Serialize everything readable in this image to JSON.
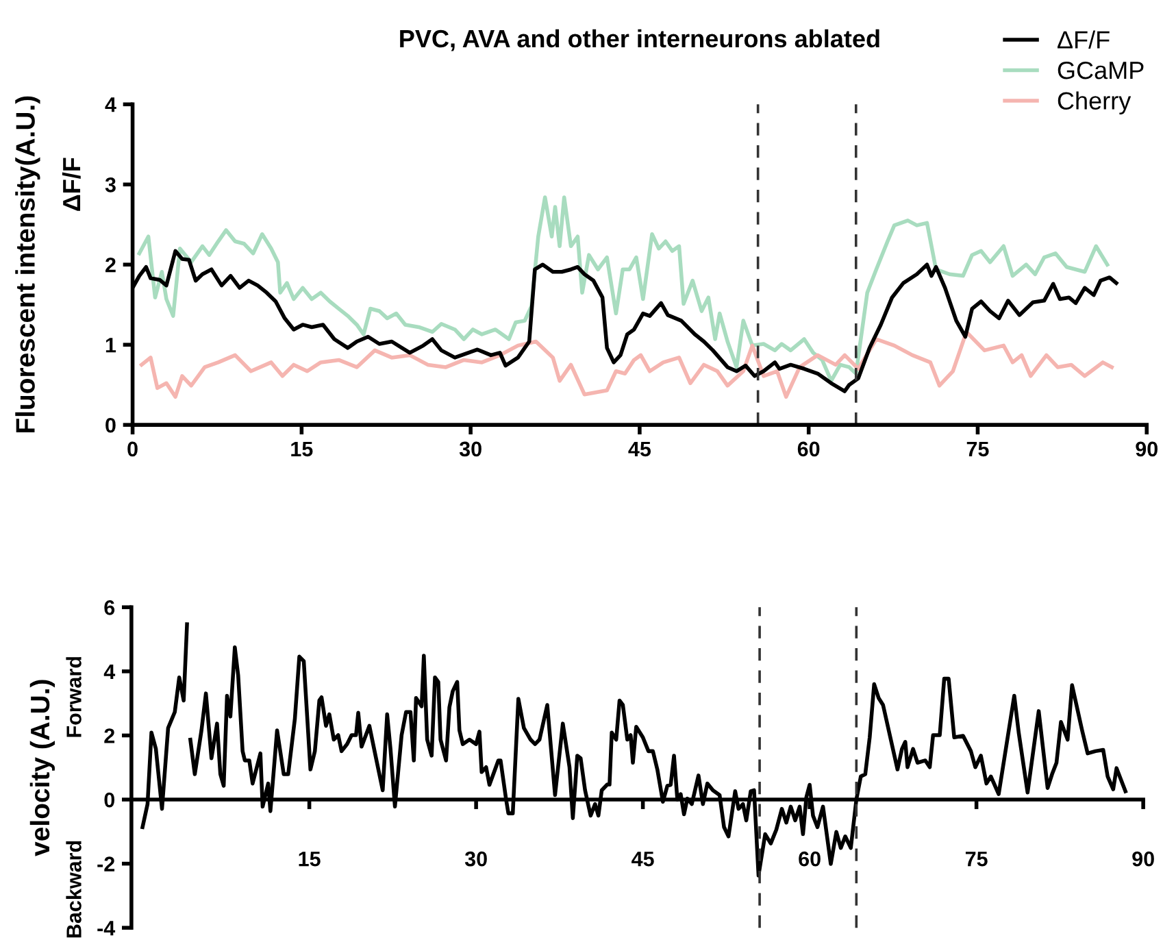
{
  "chart_data": [
    {
      "type": "line",
      "title": "PVC, AVA and other interneurons ablated",
      "ylabel": "Fluorescent intensity(A.U.)",
      "annotations": [
        "ΔF/F"
      ],
      "xlim": [
        0,
        90
      ],
      "xticks": [
        0,
        15,
        30,
        45,
        60,
        75,
        90
      ],
      "ylim": [
        0,
        4
      ],
      "yticks": [
        0,
        1,
        2,
        3,
        4
      ],
      "legend": "top right",
      "grid": false,
      "ref_lines": [
        {
          "axis": "x",
          "value": 55.5,
          "color": "#333333",
          "line_style": "dashed"
        },
        {
          "axis": "x",
          "value": 64.2,
          "color": "#333333",
          "line_style": "dashed"
        }
      ],
      "series": [
        {
          "name": "GCaMP",
          "color": "#a8dcbf",
          "x": [
            0.6,
            1.4,
            2.0,
            2.6,
            3.0,
            3.6,
            4.2,
            5.2,
            6.2,
            6.8,
            7.6,
            8.3,
            9.1,
            9.9,
            10.7,
            11.5,
            12.3,
            12.9,
            13.1,
            13.7,
            14.3,
            15.1,
            15.9,
            16.7,
            17.5,
            18.3,
            19.1,
            19.9,
            20.5,
            21.1,
            21.9,
            22.6,
            23.4,
            24.2,
            25.4,
            26.6,
            27.4,
            28.6,
            29.4,
            30.2,
            31.0,
            32.2,
            33.4,
            34.0,
            34.8,
            35.4,
            36.0,
            36.6,
            37.2,
            37.5,
            37.9,
            38.3,
            38.9,
            39.5,
            39.9,
            40.5,
            41.3,
            42.1,
            42.9,
            43.5,
            44.1,
            44.7,
            45.3,
            46.1,
            46.7,
            47.3,
            47.9,
            48.5,
            48.9,
            49.7,
            50.5,
            51.1,
            51.7,
            52.1,
            52.8,
            53.6,
            54.2,
            55.0,
            56.0,
            57.0,
            57.6,
            58.4,
            59.6,
            60.4,
            61.2,
            62.0,
            62.8,
            63.6,
            64.2,
            65.2,
            66.0,
            67.0,
            67.6,
            68.8,
            69.6,
            70.5,
            71.3,
            72.5,
            73.7,
            74.5,
            75.3,
            76.1,
            77.3,
            78.1,
            79.3,
            80.1,
            80.9,
            81.9,
            82.9,
            84.5,
            85.5,
            86.5
          ],
          "values": [
            2.14,
            2.35,
            1.59,
            1.91,
            1.57,
            1.36,
            2.2,
            2.03,
            2.23,
            2.12,
            2.29,
            2.43,
            2.29,
            2.26,
            2.14,
            2.38,
            2.2,
            2.03,
            1.65,
            1.77,
            1.57,
            1.71,
            1.57,
            1.65,
            1.54,
            1.45,
            1.36,
            1.25,
            1.13,
            1.45,
            1.42,
            1.33,
            1.39,
            1.25,
            1.22,
            1.16,
            1.26,
            1.19,
            1.07,
            1.19,
            1.13,
            1.19,
            1.07,
            1.28,
            1.3,
            1.48,
            2.35,
            2.84,
            2.35,
            2.72,
            2.23,
            2.84,
            2.23,
            2.35,
            1.65,
            2.12,
            1.94,
            2.09,
            1.39,
            1.94,
            1.94,
            2.09,
            1.57,
            2.38,
            2.2,
            2.29,
            2.17,
            2.23,
            1.51,
            1.8,
            1.42,
            1.59,
            1.07,
            1.39,
            1.04,
            0.72,
            1.3,
            0.99,
            1.01,
            0.93,
            1.01,
            0.93,
            1.07,
            0.9,
            0.81,
            0.55,
            0.75,
            0.72,
            0.64,
            1.65,
            1.94,
            2.29,
            2.49,
            2.55,
            2.49,
            2.52,
            1.94,
            1.88,
            1.86,
            2.12,
            2.17,
            2.03,
            2.23,
            1.86,
            2.0,
            1.88,
            2.09,
            2.14,
            1.97,
            1.91,
            2.23,
            2.0
          ]
        },
        {
          "name": "Cherry",
          "color": "#f5b5b0",
          "x": [
            0.8,
            1.6,
            2.2,
            3.0,
            3.8,
            4.4,
            5.2,
            6.4,
            7.6,
            9.1,
            10.5,
            12.3,
            13.3,
            14.3,
            15.5,
            16.7,
            18.3,
            19.9,
            21.5,
            23.0,
            24.6,
            26.2,
            27.8,
            29.4,
            31.0,
            32.6,
            34.2,
            35.8,
            37.3,
            37.9,
            38.9,
            40.1,
            42.1,
            42.9,
            43.7,
            44.5,
            45.1,
            45.9,
            47.1,
            48.5,
            49.5,
            50.7,
            51.9,
            52.8,
            54.2,
            55.0,
            56.0,
            57.2,
            58.0,
            59.2,
            60.8,
            62.4,
            63.2,
            64.4,
            66.0,
            67.6,
            69.2,
            70.8,
            71.6,
            72.8,
            74.0,
            75.6,
            77.3,
            78.1,
            78.9,
            79.7,
            81.1,
            82.1,
            83.3,
            84.5,
            86.1,
            86.9
          ],
          "values": [
            0.75,
            0.84,
            0.46,
            0.52,
            0.35,
            0.61,
            0.49,
            0.72,
            0.78,
            0.87,
            0.67,
            0.78,
            0.61,
            0.75,
            0.67,
            0.78,
            0.81,
            0.72,
            0.93,
            0.84,
            0.87,
            0.75,
            0.72,
            0.81,
            0.78,
            0.87,
            0.99,
            1.04,
            0.84,
            0.55,
            0.75,
            0.38,
            0.43,
            0.67,
            0.64,
            0.81,
            0.87,
            0.67,
            0.78,
            0.84,
            0.52,
            0.75,
            0.67,
            0.49,
            0.67,
            0.99,
            0.61,
            0.67,
            0.35,
            0.72,
            0.87,
            0.75,
            0.87,
            0.7,
            1.07,
            0.99,
            0.87,
            0.78,
            0.49,
            0.67,
            1.16,
            0.93,
            0.99,
            0.78,
            0.87,
            0.61,
            0.87,
            0.72,
            0.75,
            0.61,
            0.78,
            0.72
          ]
        },
        {
          "name": "ΔF/F",
          "color": "#000000",
          "x": [
            0,
            0.6,
            1.2,
            1.6,
            2.4,
            3.0,
            3.8,
            4.4,
            5.0,
            5.6,
            6.2,
            7.0,
            7.9,
            8.7,
            9.5,
            10.3,
            11.1,
            11.9,
            12.7,
            13.5,
            14.3,
            15.1,
            15.9,
            16.9,
            17.9,
            19.1,
            19.9,
            20.9,
            21.9,
            23.0,
            24.6,
            25.8,
            26.6,
            27.4,
            28.6,
            29.8,
            30.6,
            31.8,
            32.6,
            33.1,
            34.2,
            35.2,
            35.7,
            36.4,
            37.3,
            38.1,
            38.9,
            39.5,
            40.1,
            40.9,
            41.7,
            42.1,
            42.7,
            43.3,
            43.9,
            44.5,
            45.3,
            45.9,
            46.9,
            47.5,
            48.7,
            49.9,
            50.7,
            51.5,
            52.8,
            53.6,
            54.4,
            55.2,
            56.0,
            57.0,
            57.4,
            58.4,
            59.6,
            60.8,
            62.0,
            63.2,
            63.6,
            64.4,
            65.4,
            66.4,
            67.4,
            68.4,
            69.6,
            70.5,
            70.9,
            71.3,
            72.1,
            73.1,
            73.9,
            74.5,
            75.3,
            76.1,
            76.9,
            77.7,
            78.7,
            79.9,
            80.9,
            81.7,
            82.3,
            83.1,
            83.7,
            84.5,
            85.3,
            85.9,
            86.7,
            87.3
          ],
          "values": [
            1.71,
            1.86,
            1.97,
            1.83,
            1.81,
            1.74,
            2.17,
            2.07,
            2.06,
            1.8,
            1.88,
            1.94,
            1.74,
            1.86,
            1.71,
            1.8,
            1.74,
            1.65,
            1.54,
            1.33,
            1.19,
            1.25,
            1.22,
            1.25,
            1.07,
            0.96,
            1.04,
            1.1,
            1.01,
            1.04,
            0.9,
            0.99,
            1.07,
            0.93,
            0.84,
            0.9,
            0.94,
            0.87,
            0.9,
            0.74,
            0.84,
            1.04,
            1.94,
            2.0,
            1.91,
            1.91,
            1.94,
            1.97,
            1.88,
            1.8,
            1.59,
            0.96,
            0.78,
            0.87,
            1.13,
            1.19,
            1.39,
            1.36,
            1.52,
            1.37,
            1.3,
            1.13,
            1.04,
            0.93,
            0.72,
            0.67,
            0.74,
            0.61,
            0.67,
            0.78,
            0.7,
            0.75,
            0.7,
            0.64,
            0.52,
            0.42,
            0.5,
            0.58,
            0.96,
            1.25,
            1.59,
            1.77,
            1.88,
            2.0,
            1.86,
            1.97,
            1.71,
            1.3,
            1.1,
            1.45,
            1.54,
            1.42,
            1.33,
            1.55,
            1.37,
            1.53,
            1.55,
            1.76,
            1.57,
            1.59,
            1.52,
            1.71,
            1.62,
            1.8,
            1.84,
            1.77
          ]
        }
      ]
    },
    {
      "type": "line",
      "ylabel": "velocity (A.U.)",
      "annotations": [
        "Forward",
        "Backward"
      ],
      "xlim": [
        -1,
        90
      ],
      "xticks": [
        15,
        30,
        45,
        60,
        75,
        90
      ],
      "ylim": [
        -4,
        6
      ],
      "yticks": [
        {
          "value": -4,
          "label": "-4"
        },
        {
          "value": -2,
          "label": "-2"
        },
        0,
        2,
        4,
        6
      ],
      "grid": false,
      "ref_lines": [
        {
          "axis": "x",
          "value": 55.5,
          "color": "#333333",
          "line_style": "dashed"
        },
        {
          "axis": "x",
          "value": 64.2,
          "color": "#333333",
          "line_style": "dashed"
        }
      ],
      "series": [
        {
          "color": "#000000",
          "x": [
            0.0,
            0.45,
            0.8,
            1.2,
            1.75,
            2.3,
            2.9,
            3.3,
            3.7,
            4.0,
            4.15,
            4.3,
            4.7,
            5.3,
            5.7,
            6.2,
            6.7,
            7.0,
            7.3,
            7.6,
            7.9,
            8.3,
            8.6,
            9.0,
            9.2,
            9.6,
            9.9,
            10.6,
            10.8,
            11.3,
            11.5,
            12.1,
            12.7,
            13.1,
            13.7,
            14.1,
            14.5,
            15.1,
            15.5,
            15.9,
            16.1,
            16.5,
            16.8,
            17.2,
            17.6,
            17.9,
            18.4,
            18.8,
            19.2,
            19.4,
            19.7,
            20.4,
            21.0,
            21.6,
            22.0,
            22.3,
            22.7,
            23.3,
            23.7,
            24.1,
            24.4,
            24.6,
            25.1,
            25.3,
            25.6,
            26.0,
            26.3,
            26.6,
            26.8,
            27.3,
            27.6,
            27.9,
            28.3,
            28.5,
            28.8,
            29.4,
            30.0,
            30.3,
            30.5,
            30.9,
            31.2,
            32.0,
            32.2,
            32.7,
            32.9,
            33.3,
            33.8,
            34.3,
            34.9,
            35.3,
            35.7,
            36.4,
            37.1,
            37.8,
            38.4,
            38.7,
            39.1,
            39.4,
            39.8,
            40.3,
            40.7,
            41.0,
            41.3,
            41.8,
            42.0,
            42.2,
            42.6,
            42.9,
            43.2,
            43.6,
            43.9,
            44.1,
            44.4,
            45.0,
            45.5,
            45.9,
            46.3,
            46.8,
            47.2,
            47.5,
            47.8,
            48.1,
            48.4,
            48.7,
            49.0,
            49.4,
            50.0,
            50.4,
            50.8,
            51.3,
            51.9,
            52.3,
            52.7,
            53.3,
            53.6,
            54.0,
            54.3,
            54.7,
            55.0,
            55.4,
            56.0,
            56.5,
            57.0,
            57.5,
            57.9,
            58.3,
            58.7,
            59.1,
            59.4,
            59.7,
            60.0,
            60.3,
            60.7,
            61.2,
            61.9,
            62.4,
            62.8,
            63.2,
            63.7,
            64.2,
            64.6,
            65.0,
            65.4,
            65.8,
            66.2,
            66.6,
            67.3,
            67.9,
            68.3,
            68.6,
            68.8,
            69.3,
            69.7,
            70.4,
            70.8,
            71.1,
            71.7,
            72.1,
            72.5,
            73.0,
            73.8,
            74.5,
            74.9,
            75.4,
            75.9,
            76.3,
            77.0,
            78.4,
            78.8,
            79.6,
            80.6,
            81.4,
            81.8,
            82.2,
            82.6,
            83.2,
            83.6,
            84.5,
            85.0,
            85.7,
            86.4,
            86.8,
            87.3,
            87.6,
            88.4
          ],
          "values": [
            -0.86,
            -0.14,
            2.09,
            1.58,
            -0.29,
            2.23,
            2.73,
            3.81,
            3.09,
            5.47,
            null,
            1.87,
            0.79,
            2.16,
            3.31,
            1.29,
            2.37,
            0.79,
            0.43,
            3.24,
            2.59,
            4.75,
            3.88,
            1.51,
            1.22,
            1.22,
            0.5,
            1.44,
            -0.22,
            0.5,
            -0.36,
            2.16,
            0.79,
            0.79,
            2.52,
            4.46,
            4.32,
            0.94,
            1.51,
            3.09,
            3.19,
            2.3,
            2.66,
            1.87,
            2.01,
            1.51,
            1.73,
            2.01,
            2.01,
            2.71,
            1.65,
            2.3,
            1.29,
            0.29,
            2.66,
            1.58,
            -0.22,
            2.01,
            2.73,
            2.73,
            1.22,
            3.17,
            2.91,
            4.49,
            1.87,
            1.37,
            3.81,
            3.67,
            1.87,
            1.22,
            2.88,
            3.38,
            3.67,
            2.16,
            1.73,
            1.87,
            1.73,
            2.12,
            0.86,
            1.01,
            0.46,
            1.22,
            1.22,
            0.0,
            -0.43,
            -0.43,
            3.14,
            2.23,
            1.87,
            1.73,
            1.87,
            2.95,
            0.14,
            2.37,
            1.01,
            -0.58,
            1.37,
            1.29,
            0.29,
            -0.5,
            -0.14,
            -0.5,
            0.29,
            0.47,
            0.47,
            2.09,
            1.87,
            3.09,
            2.95,
            1.87,
            2.01,
            1.15,
            2.27,
            1.94,
            1.51,
            1.51,
            0.94,
            -0.07,
            0.43,
            0.46,
            1.37,
            0.0,
            0.17,
            -0.46,
            0.03,
            -0.14,
            0.75,
            -0.14,
            0.5,
            0.29,
            0.14,
            -0.86,
            -1.15,
            0.26,
            -0.29,
            -0.14,
            -0.65,
            0.26,
            0.29,
            -2.37,
            -1.08,
            -1.37,
            -0.94,
            -0.29,
            -0.72,
            -0.22,
            -0.65,
            -0.22,
            -1.08,
            0.07,
            0.46,
            -0.5,
            -0.86,
            -0.22,
            -2.01,
            -1.01,
            -1.51,
            -1.15,
            -1.51,
            0.0,
            0.72,
            0.79,
            1.94,
            3.6,
            3.17,
            2.95,
            1.87,
            0.94,
            1.58,
            1.8,
            1.01,
            1.58,
            1.15,
            1.22,
            1.01,
            2.01,
            2.01,
            3.77,
            3.77,
            1.94,
            1.99,
            1.51,
            1.01,
            1.37,
            0.5,
            0.72,
            0.17,
            3.24,
            2.09,
            0.22,
            2.76,
            0.36,
            0.79,
            1.15,
            2.42,
            1.87,
            3.57,
            2.16,
            1.44,
            1.51,
            1.55,
            0.72,
            0.32,
            0.98,
            0.26
          ]
        }
      ]
    }
  ]
}
